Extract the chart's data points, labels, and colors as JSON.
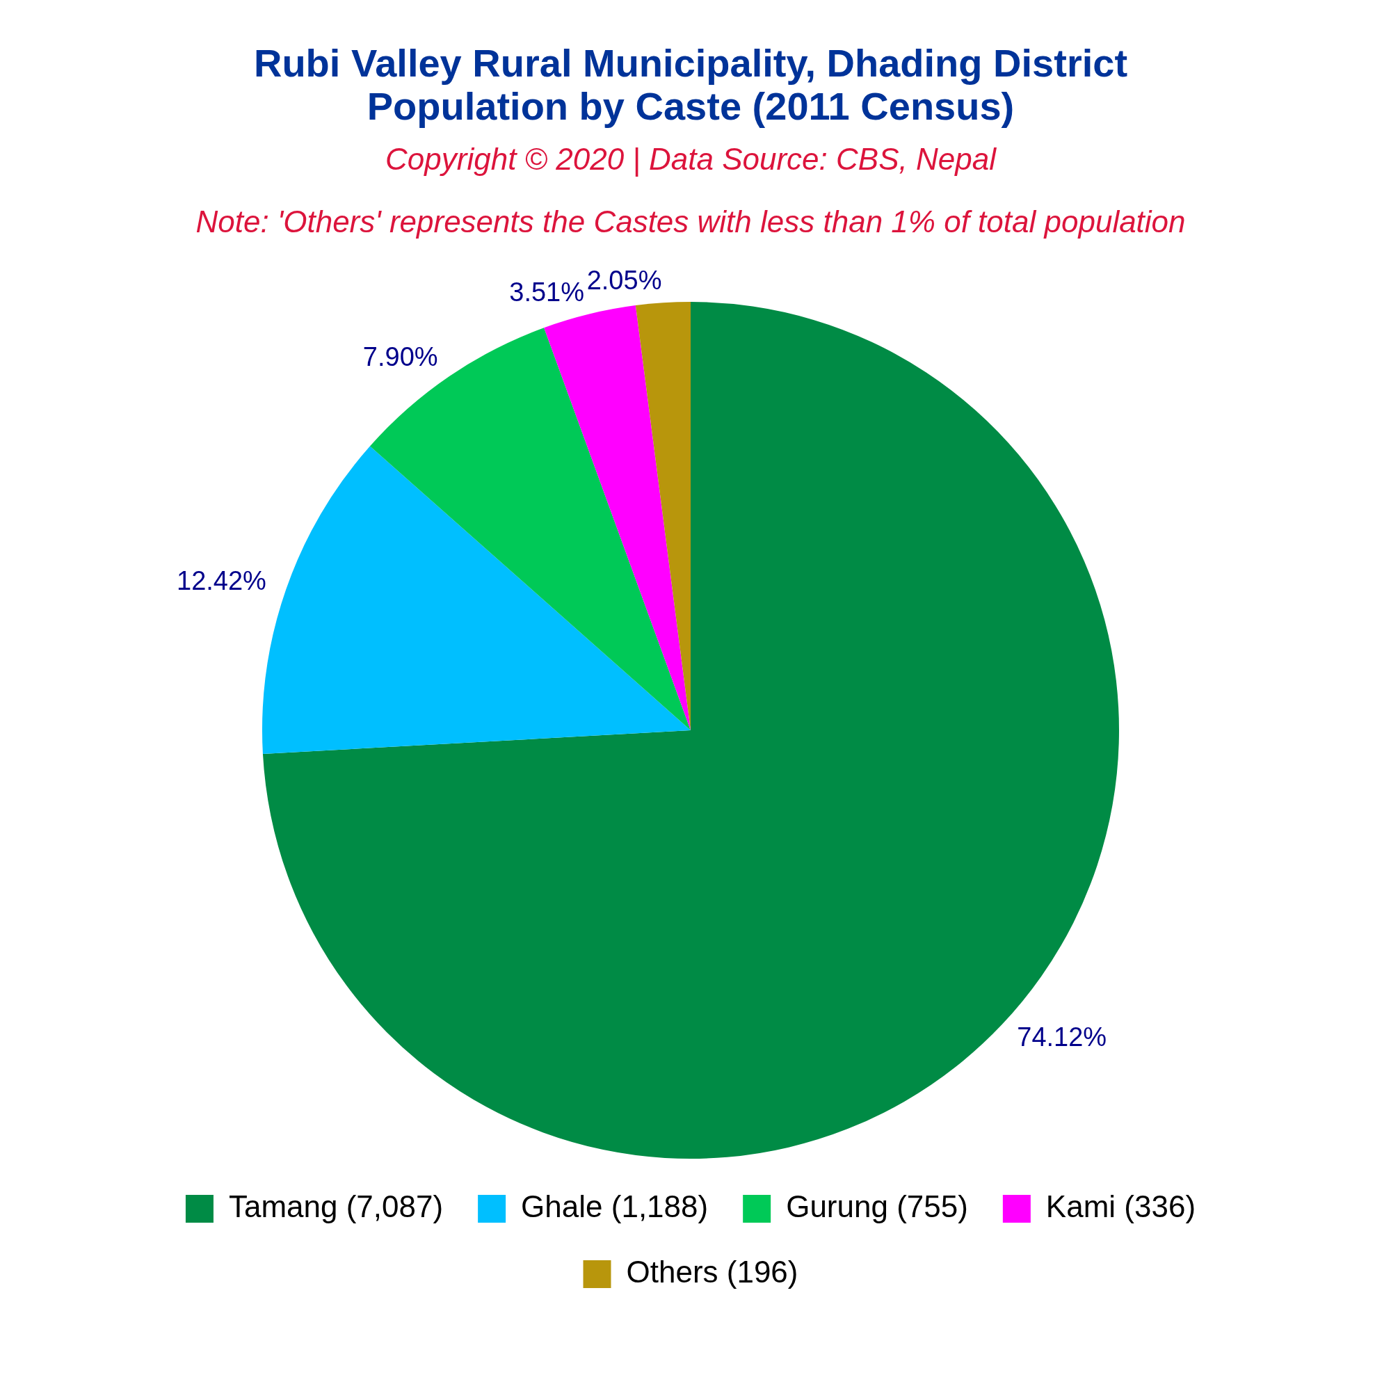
{
  "chart_data": {
    "type": "pie",
    "title": "Rubi Valley Rural Municipality, Dhading District\nPopulation by Caste (2011 Census)",
    "subtitle": "Copyright © 2020 | Data Source: CBS, Nepal",
    "annotations": [
      "Note: 'Others' represents the Castes with less than 1% of total population"
    ],
    "categories": [
      "Tamang (7,087)",
      "Ghale (1,188)",
      "Gurung (755)",
      "Kami (336)",
      "Others (196)"
    ],
    "values": [
      74.12,
      12.42,
      7.9,
      3.51,
      2.05
    ],
    "colors": [
      "#008b45",
      "#00bfff",
      "#00c957",
      "#ff00ff",
      "#b8960c"
    ],
    "value_labels": [
      "74.12%",
      "12.42%",
      "7.90%",
      "3.51%",
      "2.05%"
    ],
    "legend": "bottom"
  }
}
